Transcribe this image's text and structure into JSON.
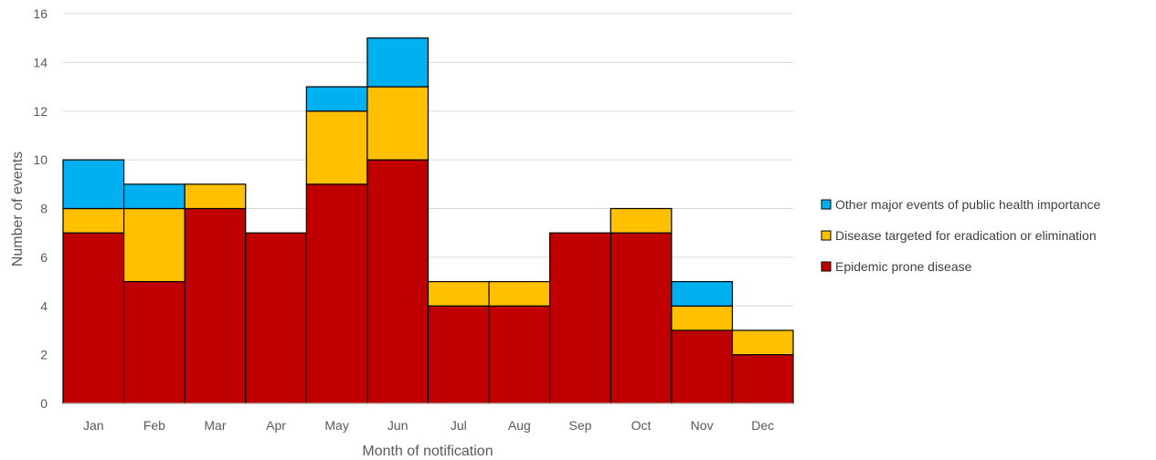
{
  "chart_data": {
    "type": "bar",
    "stacked": true,
    "categories": [
      "Jan",
      "Feb",
      "Mar",
      "Apr",
      "May",
      "Jun",
      "Jul",
      "Aug",
      "Sep",
      "Oct",
      "Nov",
      "Dec"
    ],
    "series": [
      {
        "name": "Epidemic prone disease",
        "color": "#c00000",
        "values": [
          7,
          5,
          8,
          7,
          9,
          10,
          4,
          4,
          7,
          7,
          3,
          2
        ]
      },
      {
        "name": "Disease targeted for eradication or elimination",
        "color": "#ffc000",
        "values": [
          1,
          3,
          1,
          0,
          3,
          3,
          1,
          1,
          0,
          1,
          1,
          1
        ]
      },
      {
        "name": "Other major events of public health importance",
        "color": "#00b0f0",
        "values": [
          2,
          1,
          0,
          0,
          1,
          2,
          0,
          0,
          0,
          0,
          1,
          0
        ]
      }
    ],
    "xlabel": "Month of notification",
    "ylabel": "Number of events",
    "ylim": [
      0,
      16
    ],
    "yticks": [
      "0",
      "2",
      "4",
      "6",
      "8",
      "10",
      "12",
      "14",
      "16"
    ],
    "grid": true,
    "legend_placement": "right",
    "legend_order": [
      "Other major events of public health importance",
      "Disease targeted for eradication or elimination",
      "Epidemic prone disease"
    ]
  }
}
